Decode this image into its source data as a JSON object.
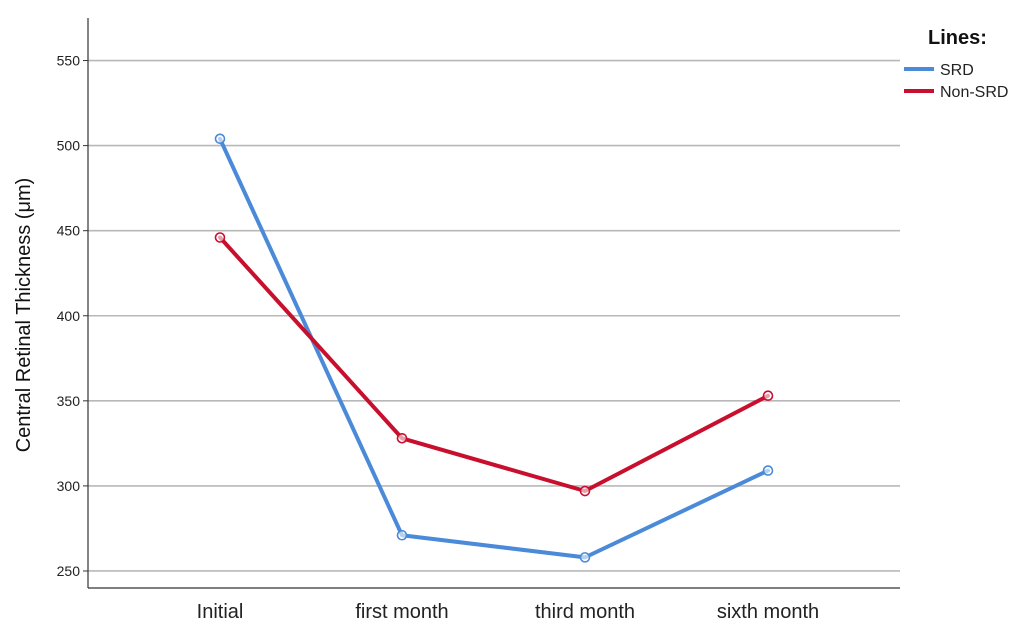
{
  "chart_data": {
    "type": "line",
    "title": "",
    "xlabel": "",
    "ylabel": "Central Retinal Thickness (μm)",
    "categories": [
      "Initial",
      "first month",
      "third month",
      "sixth month"
    ],
    "yticks": [
      250,
      300,
      350,
      400,
      450,
      500,
      550
    ],
    "ylim": [
      240,
      575
    ],
    "grid": true,
    "legend": {
      "title": "Lines:",
      "placement": "top-right"
    },
    "series": [
      {
        "name": "SRD",
        "color": "#4a8ad8",
        "values": [
          504,
          271,
          258,
          309
        ]
      },
      {
        "name": "Non-SRD",
        "color": "#c8102e",
        "values": [
          446,
          328,
          297,
          353
        ]
      }
    ]
  }
}
